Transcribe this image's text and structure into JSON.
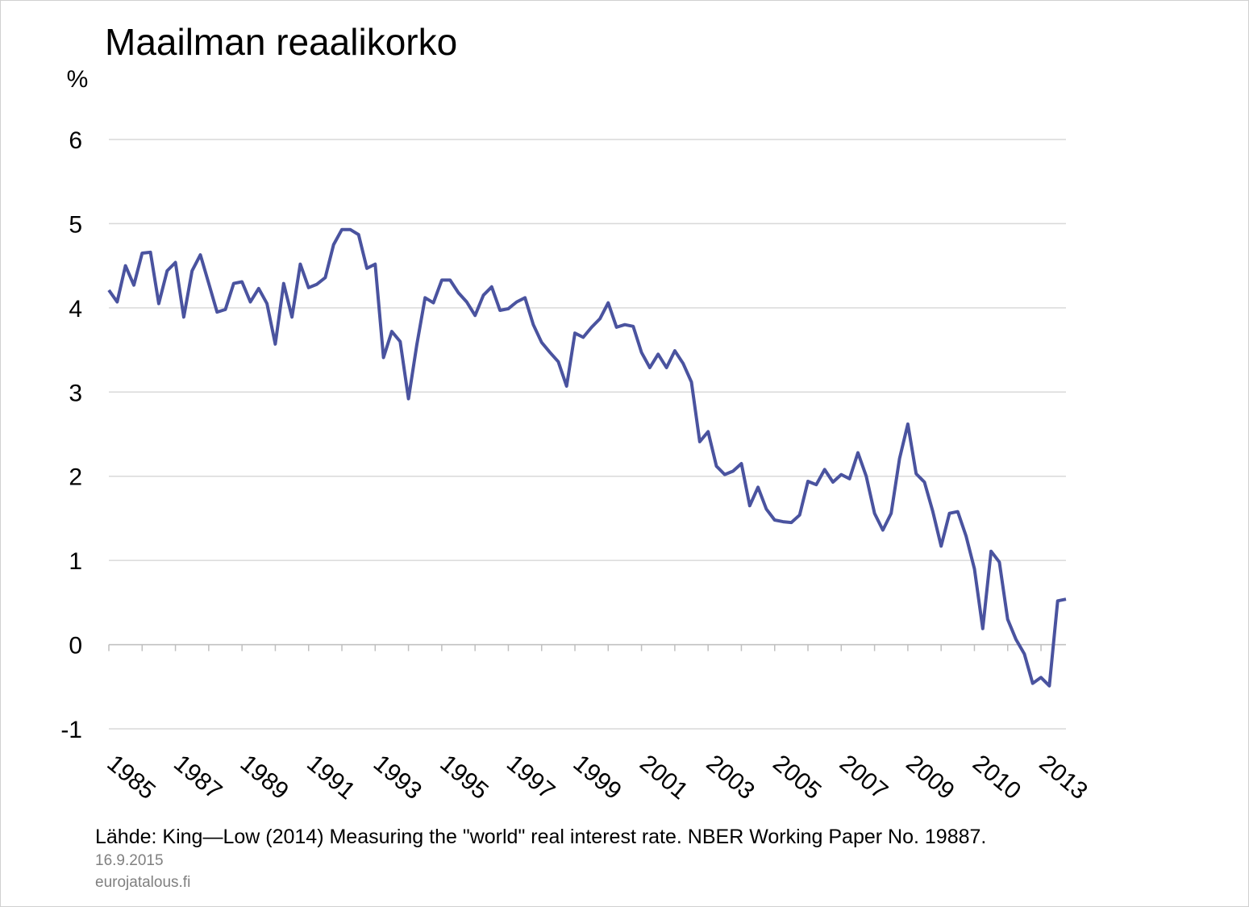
{
  "chart_data": {
    "type": "line",
    "title": "Maailman reaalikorko",
    "y_label": "%",
    "categories": [
      "1985",
      null,
      null,
      null,
      null,
      null,
      null,
      null,
      "1987",
      null,
      null,
      null,
      null,
      null,
      null,
      null,
      "1989",
      null,
      null,
      null,
      null,
      null,
      null,
      null,
      "1991",
      null,
      null,
      null,
      null,
      null,
      null,
      null,
      "1993",
      null,
      null,
      null,
      null,
      null,
      null,
      null,
      "1995",
      null,
      null,
      null,
      null,
      null,
      null,
      null,
      "1997",
      null,
      null,
      null,
      null,
      null,
      null,
      null,
      "1999",
      null,
      null,
      null,
      null,
      null,
      null,
      null,
      "2001",
      null,
      null,
      null,
      null,
      null,
      null,
      null,
      "2003",
      null,
      null,
      null,
      null,
      null,
      null,
      null,
      "2005",
      null,
      null,
      null,
      null,
      null,
      null,
      null,
      "2007",
      null,
      null,
      null,
      null,
      null,
      null,
      null,
      "2009",
      null,
      null,
      null,
      null,
      null,
      null,
      null,
      "2010",
      null,
      null,
      null,
      null,
      null,
      null,
      null,
      "2013",
      null,
      null,
      null
    ],
    "values": [
      4.21,
      4.07,
      4.5,
      4.27,
      4.65,
      4.66,
      4.05,
      4.44,
      4.54,
      3.89,
      4.44,
      4.63,
      4.29,
      3.95,
      3.98,
      4.29,
      4.31,
      4.07,
      4.23,
      4.05,
      3.57,
      4.29,
      3.89,
      4.52,
      4.24,
      4.28,
      4.36,
      4.75,
      4.93,
      4.93,
      4.87,
      4.47,
      4.52,
      3.41,
      3.72,
      3.6,
      2.92,
      3.56,
      4.12,
      4.06,
      4.33,
      4.33,
      4.18,
      4.07,
      3.91,
      4.15,
      4.25,
      3.97,
      3.99,
      4.07,
      4.12,
      3.8,
      3.59,
      3.47,
      3.36,
      3.07,
      3.7,
      3.65,
      3.77,
      3.87,
      4.06,
      3.77,
      3.8,
      3.78,
      3.47,
      3.29,
      3.45,
      3.29,
      3.49,
      3.34,
      3.12,
      2.41,
      2.53,
      2.12,
      2.02,
      2.06,
      2.15,
      1.65,
      1.87,
      1.61,
      1.48,
      1.46,
      1.45,
      1.54,
      1.94,
      1.9,
      2.08,
      1.93,
      2.02,
      1.97,
      2.28,
      2.0,
      1.56,
      1.36,
      1.56,
      2.21,
      2.62,
      2.03,
      1.93,
      1.58,
      1.17,
      1.56,
      1.58,
      1.29,
      0.9,
      0.19,
      1.11,
      0.98,
      0.3,
      0.06,
      -0.11,
      -0.46,
      -0.39,
      -0.49,
      0.52,
      0.54
    ],
    "color": "#4a539f",
    "ylim": [
      -1,
      6
    ],
    "yticks": [
      -1,
      0,
      1,
      2,
      3,
      4,
      5,
      6
    ],
    "grid": true,
    "source": "Lähde: King—Low (2014) Measuring the \"world\" real interest rate. NBER Working Paper No. 19887.",
    "date": "16.9.2015",
    "site": "eurojatalous.fi"
  }
}
